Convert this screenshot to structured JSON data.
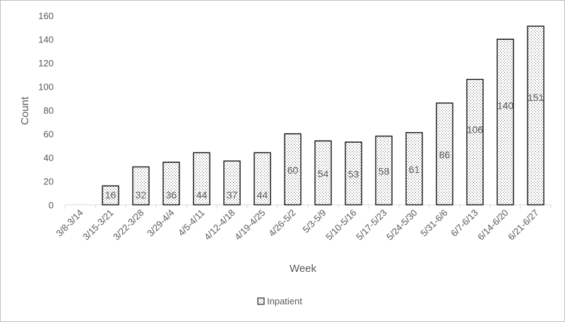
{
  "chart_data": {
    "type": "bar",
    "xlabel": "Week",
    "ylabel": "Count",
    "ylim": [
      0,
      160
    ],
    "yticks": [
      0,
      20,
      40,
      60,
      80,
      100,
      120,
      140,
      160
    ],
    "grid": false,
    "legend_position": "bottom",
    "categories": [
      "3/8-3/14",
      "3/15-3/21",
      "3/22-3/28",
      "3/29-4/4",
      "4/5-4/11",
      "4/12-4/18",
      "4/19-4/25",
      "4/26-5/2",
      "5/3-5/9",
      "5/10-5/16",
      "5/17-5/23",
      "5/24-5/30",
      "5/31-6/6",
      "6/7-6/13",
      "6/14-6/20",
      "6/21-6/27"
    ],
    "series": [
      {
        "name": "Inpatient",
        "values": [
          null,
          16,
          32,
          36,
          44,
          37,
          44,
          60,
          54,
          53,
          58,
          61,
          86,
          106,
          140,
          151
        ],
        "data_labels": [
          "",
          "16",
          "32",
          "36",
          "44",
          "37",
          "44",
          "60",
          "54",
          "53",
          "58",
          "61",
          "86",
          "106",
          "140",
          "151"
        ],
        "fill": "dotted",
        "color": "#000000"
      }
    ]
  }
}
